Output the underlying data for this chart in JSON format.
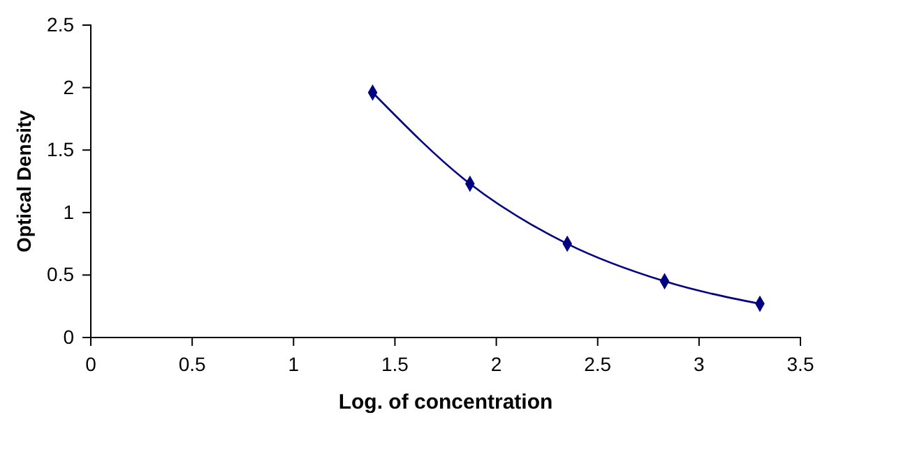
{
  "chart_data": {
    "type": "line",
    "xlabel": "Log. of concentration",
    "ylabel": "Optical Density",
    "x": [
      1.39,
      1.87,
      2.35,
      2.83,
      3.3
    ],
    "series": [
      {
        "color": "#000080",
        "values": [
          1.96,
          1.23,
          0.75,
          0.45,
          0.27
        ]
      }
    ],
    "xlim": [
      0,
      3.5
    ],
    "xticks": [
      0,
      0.5,
      1,
      1.5,
      2,
      2.5,
      3,
      3.5
    ],
    "ylim": [
      0,
      2.5
    ],
    "yticks": [
      0,
      0.5,
      1,
      1.5,
      2,
      2.5
    ],
    "marker": "diamond",
    "line_style": "solid",
    "grid": false
  }
}
